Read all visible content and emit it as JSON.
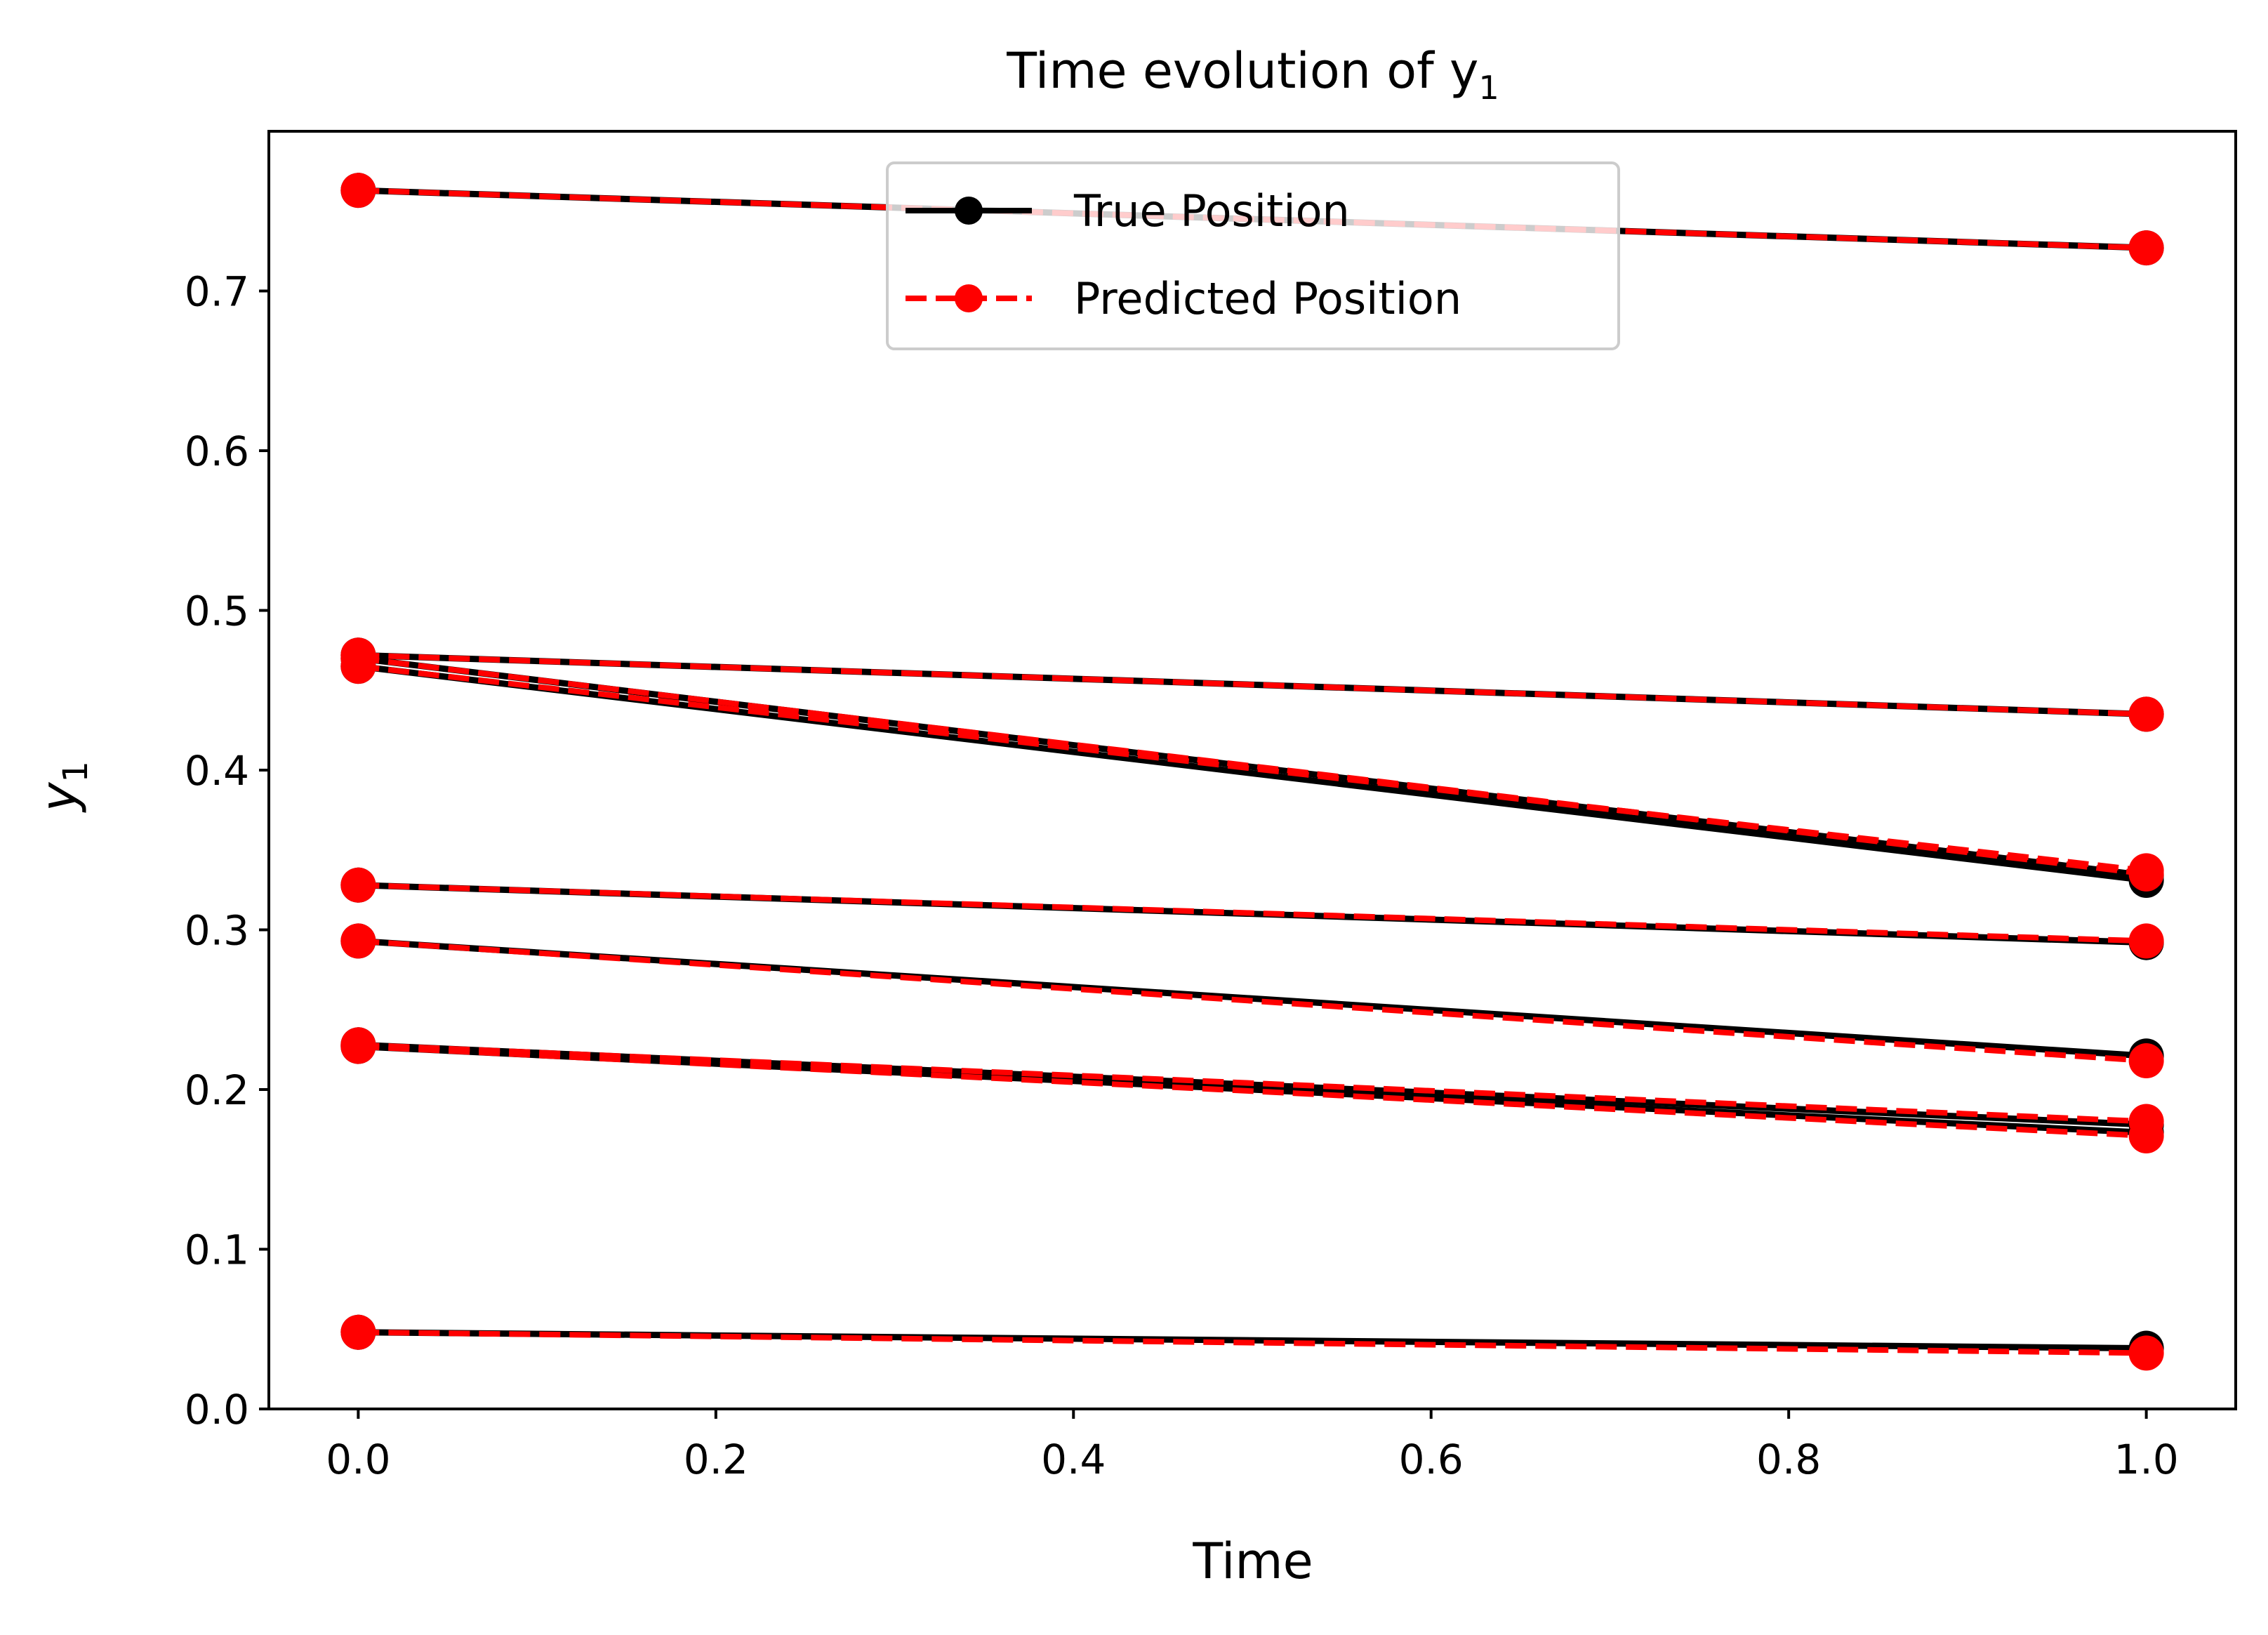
{
  "chart_data": {
    "type": "line",
    "title": "Time evolution of y",
    "title_subscript": "1",
    "xlabel": "Time",
    "ylabel": "y",
    "ylabel_subscript": "1",
    "xlim": [
      -0.05,
      1.05
    ],
    "ylim": [
      0.0,
      0.8
    ],
    "xticks": [
      "0.0",
      "0.2",
      "0.4",
      "0.6",
      "0.8",
      "1.0"
    ],
    "yticks": [
      "0.0",
      "0.1",
      "0.2",
      "0.3",
      "0.4",
      "0.5",
      "0.6",
      "0.7"
    ],
    "grid": false,
    "legend_position": "upper-center",
    "legend": [
      {
        "label": "True Position",
        "color": "#000000",
        "style": "solid"
      },
      {
        "label": "Predicted Position",
        "color": "#ff0000",
        "style": "dashed"
      }
    ],
    "x": [
      0.0,
      1.0
    ],
    "series": [
      {
        "true": [
          0.763,
          0.727
        ],
        "predicted": [
          0.763,
          0.727
        ]
      },
      {
        "true": [
          0.472,
          0.435
        ],
        "predicted": [
          0.472,
          0.435
        ]
      },
      {
        "true": [
          0.465,
          0.331
        ],
        "predicted": [
          0.465,
          0.337
        ]
      },
      {
        "true": [
          0.47,
          0.334
        ],
        "predicted": [
          0.47,
          0.335
        ]
      },
      {
        "true": [
          0.328,
          0.292
        ],
        "predicted": [
          0.328,
          0.293
        ]
      },
      {
        "true": [
          0.293,
          0.221
        ],
        "predicted": [
          0.293,
          0.218
        ]
      },
      {
        "true": [
          0.227,
          0.173
        ],
        "predicted": [
          0.227,
          0.171
        ]
      },
      {
        "true": [
          0.228,
          0.178
        ],
        "predicted": [
          0.228,
          0.18
        ]
      },
      {
        "true": [
          0.048,
          0.038
        ],
        "predicted": [
          0.048,
          0.035
        ]
      }
    ]
  }
}
